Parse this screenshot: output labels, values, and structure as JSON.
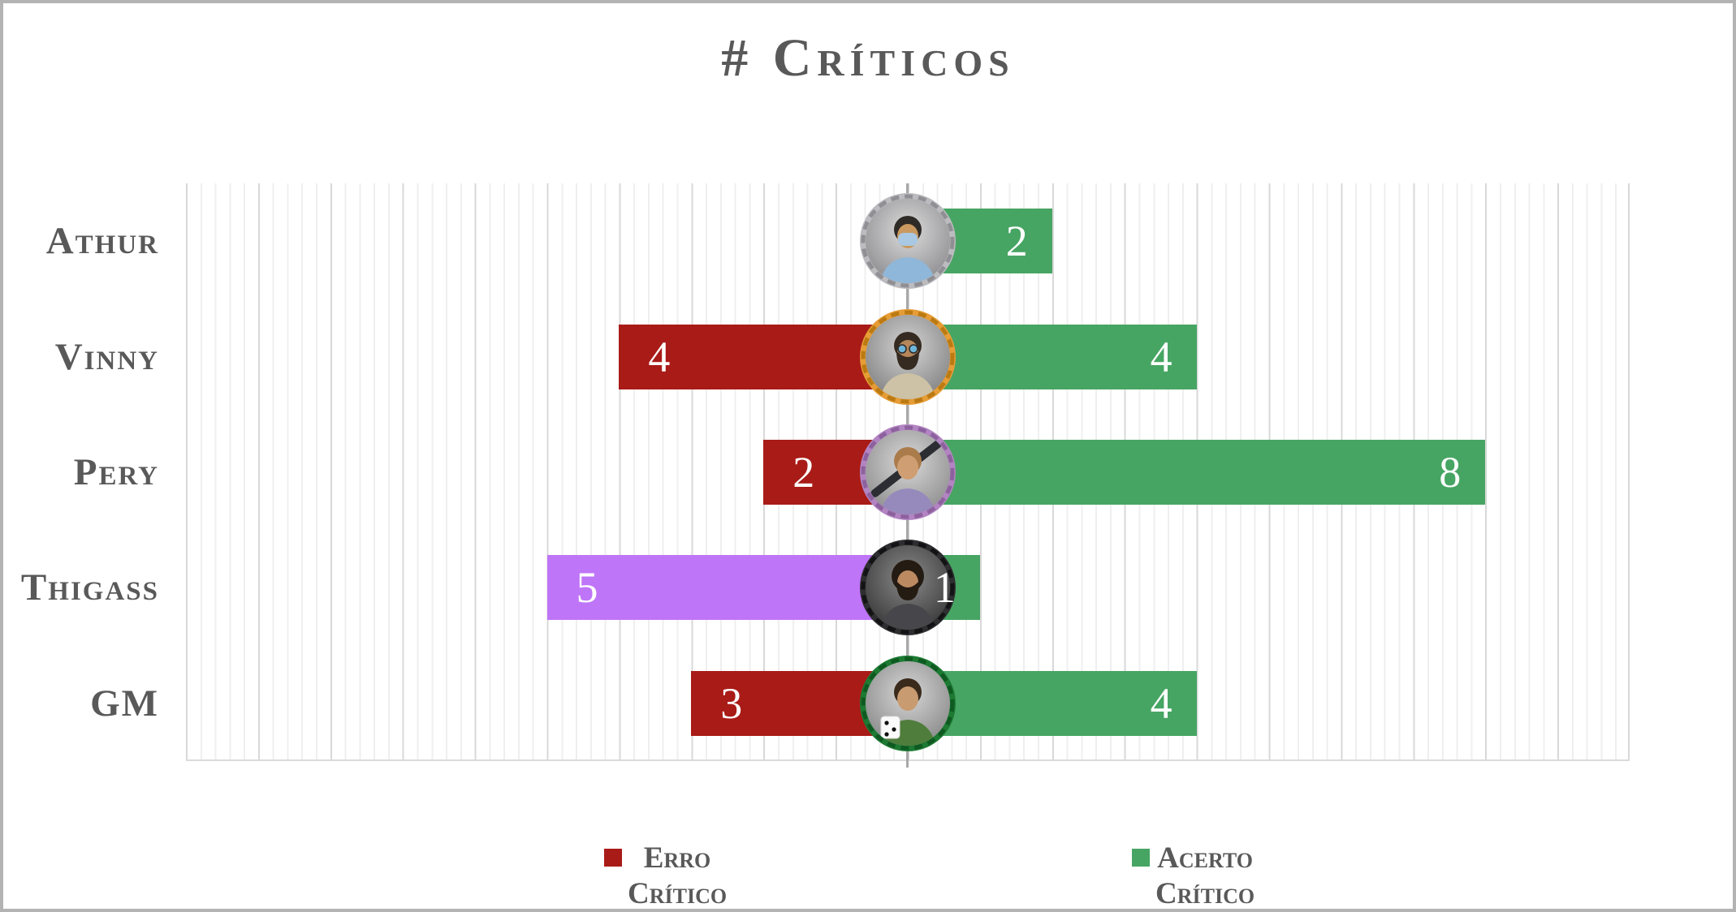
{
  "frame": {
    "border_color": "#b3b3b3",
    "background": "#ffffff"
  },
  "chart_data": {
    "type": "bar",
    "orientation": "horizontal-diverging",
    "title": "# Críticos",
    "title_color": "#595959",
    "category_label_color": "#595959",
    "categories": [
      "Athur",
      "Vinny",
      "Pery",
      "Thigass",
      "GM"
    ],
    "series": [
      {
        "name": "Erro Crítico",
        "side": "left",
        "color": "#a91b17",
        "values": [
          0,
          4,
          2,
          5,
          3
        ],
        "point_colors": [
          null,
          null,
          null,
          "#bf75f7",
          null
        ]
      },
      {
        "name": "Acerto Crítico",
        "side": "right",
        "color": "#47a563",
        "values": [
          2,
          4,
          8,
          1,
          4
        ],
        "point_colors": [
          null,
          null,
          null,
          null,
          null
        ]
      }
    ],
    "xlim": [
      -10,
      10
    ],
    "grid": {
      "minor_unit": 0.2,
      "major_unit": 1,
      "minor_color": "#efefef",
      "major_color": "#d8d8d8",
      "zero_line_color": "#a8a8a8",
      "vertical_gridlines": true
    },
    "value_labels": {
      "color": "#ffffff",
      "show_zero": false,
      "position": "inside-end"
    },
    "legend": {
      "position": "bottom",
      "items": [
        {
          "line1": "Erro",
          "line2": "Crítico",
          "color": "#a91b17"
        },
        {
          "line1": "Acerto",
          "line2": "Crítico",
          "color": "#47a563"
        }
      ]
    }
  },
  "avatars": [
    {
      "name": "athur-surgical-mask-avatar",
      "ring": "#bcbcc0",
      "ring_dark": "#909094",
      "bg_light": "#dcdcdc",
      "bg_dark": "#7e7e82",
      "skin": "#c9995f",
      "hair": "#2e2a26",
      "shirt": "#8fb7d9",
      "mask": "#a9c8e3",
      "features": [
        "mask"
      ]
    },
    {
      "name": "vinny-bearded-glasses-avatar",
      "ring": "#e69d36",
      "ring_dark": "#bb7a12",
      "bg_light": "#d4d4d4",
      "bg_dark": "#737373",
      "skin": "#b5875a",
      "hair": "#362b21",
      "shirt": "#cdc2a6",
      "features": [
        "beard",
        "glasses"
      ]
    },
    {
      "name": "pery-club-avatar",
      "ring": "#b285c2",
      "ring_dark": "#8d619e",
      "bg_light": "#d8d8d8",
      "bg_dark": "#808080",
      "skin": "#cf9e73",
      "hair": "#ab7c4b",
      "shirt": "#968abc",
      "features": [
        "weapon"
      ]
    },
    {
      "name": "thigass-big-beard-avatar",
      "ring": "#2e2e30",
      "ring_dark": "#131315",
      "bg_light": "#8a8a8a",
      "bg_dark": "#2a2a2a",
      "skin": "#bb8a60",
      "hair": "#241b13",
      "shirt": "#47474b",
      "features": [
        "beard",
        "bighair"
      ]
    },
    {
      "name": "gm-green-robe-die-avatar",
      "ring": "#1d7a33",
      "ring_dark": "#0e5a21",
      "bg_light": "#d6d6d6",
      "bg_dark": "#7b7b7b",
      "skin": "#c99b70",
      "hair": "#3a2a1c",
      "shirt": "#4f7d3c",
      "features": [
        "die"
      ]
    }
  ]
}
